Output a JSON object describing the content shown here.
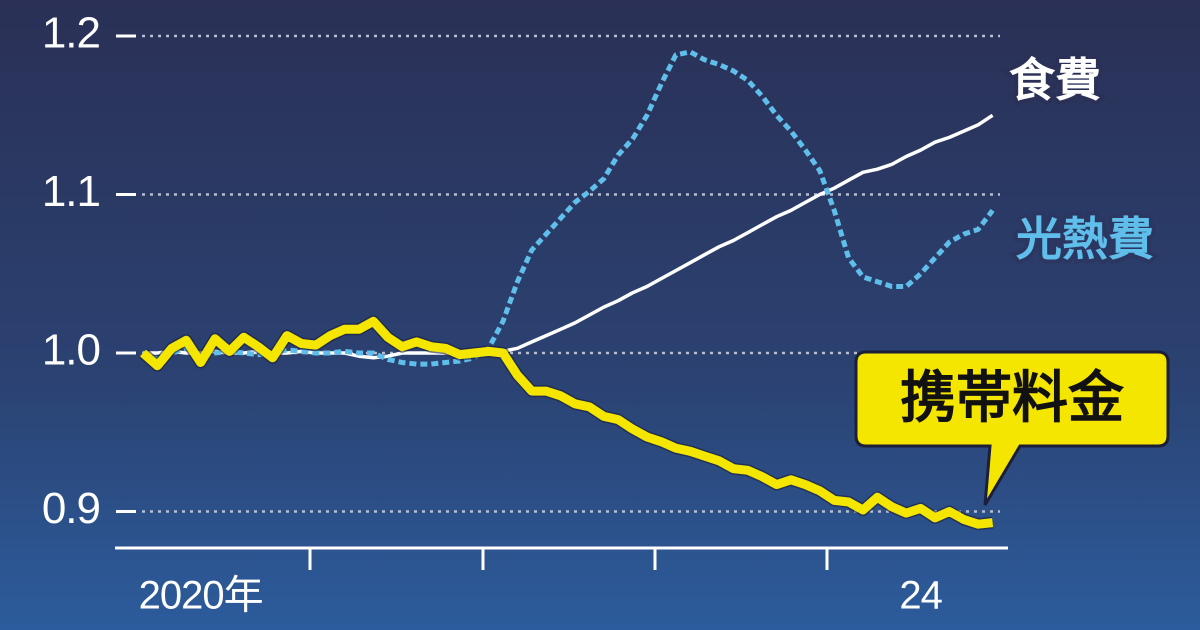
{
  "chart_data": {
    "type": "line",
    "categories": [
      null,
      null,
      null,
      null,
      "2020年",
      null,
      null,
      null,
      null,
      null,
      null,
      null,
      null,
      null,
      null,
      null,
      null,
      null,
      null,
      null,
      null,
      null,
      null,
      null,
      null,
      null,
      null,
      null,
      null,
      null,
      null,
      null,
      null,
      null,
      null,
      null,
      null,
      null,
      null,
      null,
      null,
      null,
      null,
      null,
      null,
      null,
      null,
      null,
      null,
      null,
      null,
      null,
      null,
      null,
      "24",
      null,
      null,
      null,
      null,
      null
    ],
    "series": [
      {
        "name": "食費",
        "color": "#ffffff",
        "dash": false,
        "values": [
          1.0,
          1.0,
          1.001,
          1.0,
          1.0,
          1.001,
          1.0,
          1.0,
          1.001,
          1.0,
          1.0,
          1.001,
          1.0,
          1.0,
          1.0,
          0.998,
          0.997,
          0.998,
          1.0,
          1.0,
          1.0,
          1.0,
          1.0,
          1.0,
          1.0,
          1.001,
          1.003,
          1.007,
          1.011,
          1.015,
          1.019,
          1.024,
          1.029,
          1.033,
          1.038,
          1.042,
          1.047,
          1.052,
          1.057,
          1.062,
          1.067,
          1.071,
          1.076,
          1.081,
          1.086,
          1.09,
          1.095,
          1.1,
          1.104,
          1.109,
          1.114,
          1.116,
          1.119,
          1.124,
          1.128,
          1.133,
          1.136,
          1.14,
          1.144,
          1.15
        ]
      },
      {
        "name": "光熱費",
        "color": "#5fbfea",
        "dash": true,
        "values": [
          1.0,
          0.996,
          1.0,
          1.003,
          0.998,
          1.0,
          1.001,
          1.0,
          0.999,
          1.0,
          1.002,
          1.001,
          1.0,
          1.0,
          1.001,
          1.0,
          1.0,
          0.996,
          0.994,
          0.993,
          0.993,
          0.994,
          0.995,
          0.997,
          1.003,
          1.02,
          1.045,
          1.065,
          1.075,
          1.085,
          1.095,
          1.102,
          1.11,
          1.125,
          1.135,
          1.15,
          1.17,
          1.188,
          1.19,
          1.185,
          1.182,
          1.178,
          1.172,
          1.162,
          1.15,
          1.14,
          1.128,
          1.115,
          1.09,
          1.06,
          1.048,
          1.045,
          1.042,
          1.042,
          1.05,
          1.06,
          1.07,
          1.075,
          1.078,
          1.09
        ]
      },
      {
        "name": "携帯料金",
        "color": "#f5e600",
        "dash": false,
        "values": [
          1.0,
          0.992,
          1.003,
          1.008,
          0.994,
          1.009,
          1.001,
          1.01,
          1.004,
          0.997,
          1.011,
          1.006,
          1.005,
          1.011,
          1.015,
          1.015,
          1.02,
          1.01,
          1.004,
          1.007,
          1.004,
          1.003,
          0.999,
          1.0,
          1.001,
          1.0,
          0.986,
          0.976,
          0.976,
          0.973,
          0.968,
          0.966,
          0.96,
          0.958,
          0.952,
          0.947,
          0.944,
          0.94,
          0.938,
          0.935,
          0.932,
          0.927,
          0.926,
          0.922,
          0.917,
          0.92,
          0.917,
          0.913,
          0.907,
          0.906,
          0.901,
          0.909,
          0.903,
          0.899,
          0.902,
          0.896,
          0.9,
          0.895,
          0.892,
          0.893
        ]
      }
    ],
    "ylim": [
      0.877,
      1.2
    ],
    "yticks": [
      0.9,
      {
        "value": 1,
        "label": "1.0"
      },
      1.1,
      1.2
    ],
    "grid": true
  }
}
